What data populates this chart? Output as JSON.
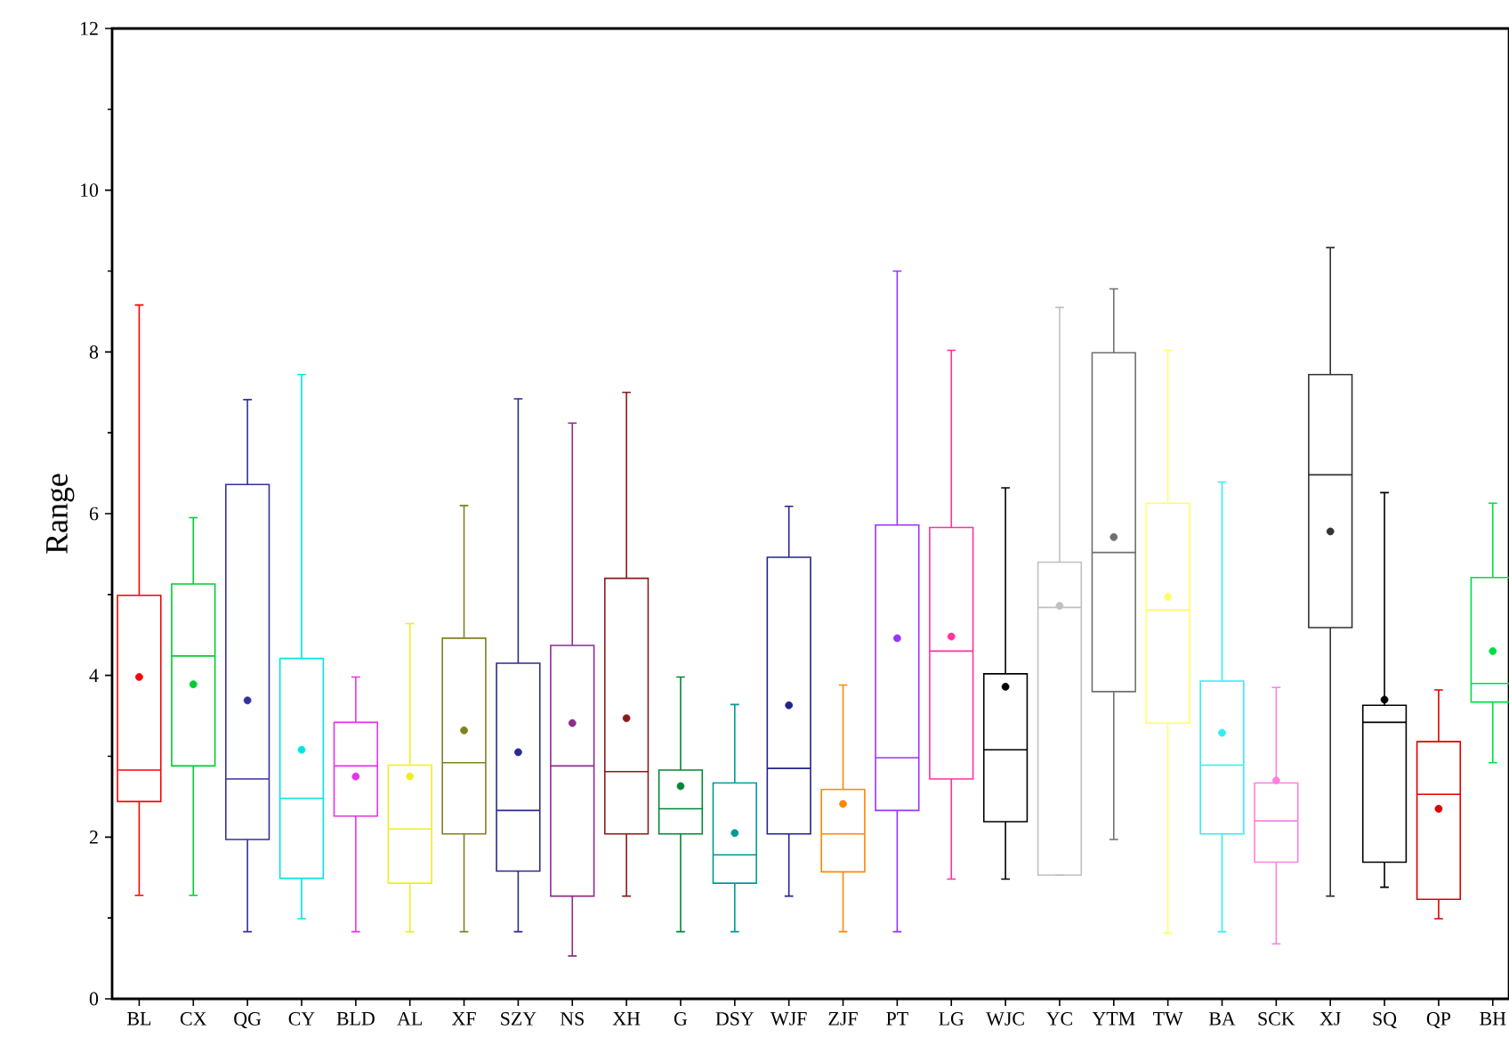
{
  "chart_data": {
    "type": "box",
    "ylabel": "Range",
    "ylim": [
      0,
      12
    ],
    "yticks": [
      0,
      2,
      4,
      6,
      8,
      10,
      12
    ],
    "grid": false,
    "marker": "circle",
    "categories": [
      "BL",
      "CX",
      "QG",
      "CY",
      "BLD",
      "AL",
      "XF",
      "SZY",
      "NS",
      "XH",
      "G",
      "DSY",
      "WJF",
      "ZJF",
      "PT",
      "LG",
      "WJC",
      "YC",
      "YTM",
      "TW",
      "BA",
      "SCK",
      "XJ",
      "SQ",
      "QP",
      "BH"
    ],
    "colors": [
      "#ff0000",
      "#00cc33",
      "#333399",
      "#00e5e5",
      "#e633e6",
      "#eeee22",
      "#808020",
      "#2b2b8c",
      "#8b2e8b",
      "#8b1a1a",
      "#008833",
      "#009999",
      "#23238e",
      "#ff8800",
      "#9933ff",
      "#ff3399",
      "#000000",
      "#c0c0c0",
      "#707070",
      "#ffff66",
      "#33eeee",
      "#ff80e0",
      "#333333",
      "#000000",
      "#dd0000",
      "#00dd44"
    ],
    "boxes": [
      {
        "low": 1.28,
        "q1": 2.44,
        "median": 2.83,
        "q3": 4.99,
        "high": 8.58,
        "mean": 3.98
      },
      {
        "low": 1.28,
        "q1": 2.88,
        "median": 4.24,
        "q3": 5.13,
        "high": 5.95,
        "mean": 3.89
      },
      {
        "low": 0.83,
        "q1": 1.97,
        "median": 2.72,
        "q3": 6.36,
        "high": 7.41,
        "mean": 3.69
      },
      {
        "low": 0.99,
        "q1": 1.49,
        "median": 2.48,
        "q3": 4.21,
        "high": 7.72,
        "mean": 3.08
      },
      {
        "low": 0.83,
        "q1": 2.26,
        "median": 2.88,
        "q3": 3.42,
        "high": 3.98,
        "mean": 2.75
      },
      {
        "low": 0.83,
        "q1": 1.43,
        "median": 2.1,
        "q3": 2.89,
        "high": 4.64,
        "mean": 2.75
      },
      {
        "low": 0.83,
        "q1": 2.04,
        "median": 2.92,
        "q3": 4.46,
        "high": 6.1,
        "mean": 3.32
      },
      {
        "low": 0.83,
        "q1": 1.58,
        "median": 2.33,
        "q3": 4.15,
        "high": 7.42,
        "mean": 3.05
      },
      {
        "low": 0.53,
        "q1": 1.27,
        "median": 2.88,
        "q3": 4.37,
        "high": 7.12,
        "mean": 3.41
      },
      {
        "low": 1.27,
        "q1": 2.04,
        "median": 2.81,
        "q3": 5.2,
        "high": 7.5,
        "mean": 3.47
      },
      {
        "low": 0.83,
        "q1": 2.04,
        "median": 2.35,
        "q3": 2.83,
        "high": 3.98,
        "mean": 2.63
      },
      {
        "low": 0.83,
        "q1": 1.43,
        "median": 1.78,
        "q3": 2.67,
        "high": 3.64,
        "mean": 2.05
      },
      {
        "low": 1.27,
        "q1": 2.04,
        "median": 2.85,
        "q3": 5.46,
        "high": 6.09,
        "mean": 3.63
      },
      {
        "low": 0.83,
        "q1": 1.57,
        "median": 2.04,
        "q3": 2.59,
        "high": 3.88,
        "mean": 2.41
      },
      {
        "low": 0.83,
        "q1": 2.33,
        "median": 2.98,
        "q3": 5.86,
        "high": 9.0,
        "mean": 4.46
      },
      {
        "low": 1.48,
        "q1": 2.72,
        "median": 4.3,
        "q3": 5.83,
        "high": 8.02,
        "mean": 4.48
      },
      {
        "low": 1.48,
        "q1": 2.19,
        "median": 3.08,
        "q3": 4.02,
        "high": 6.32,
        "mean": 3.86
      },
      {
        "low": 1.53,
        "q1": 1.53,
        "median": 4.84,
        "q3": 5.4,
        "high": 8.55,
        "mean": 4.86
      },
      {
        "low": 1.97,
        "q1": 3.8,
        "median": 5.52,
        "q3": 7.99,
        "high": 8.78,
        "mean": 5.71
      },
      {
        "low": 0.81,
        "q1": 3.41,
        "median": 4.81,
        "q3": 6.13,
        "high": 8.02,
        "mean": 4.97
      },
      {
        "low": 0.83,
        "q1": 2.04,
        "median": 2.89,
        "q3": 3.93,
        "high": 6.39,
        "mean": 3.29
      },
      {
        "low": 0.68,
        "q1": 1.69,
        "median": 2.2,
        "q3": 2.67,
        "high": 3.85,
        "mean": 2.7
      },
      {
        "low": 1.27,
        "q1": 4.59,
        "median": 6.48,
        "q3": 7.72,
        "high": 9.29,
        "mean": 5.78
      },
      {
        "low": 1.38,
        "q1": 1.69,
        "median": 3.42,
        "q3": 3.63,
        "high": 6.26,
        "mean": 3.7
      },
      {
        "low": 0.99,
        "q1": 1.23,
        "median": 2.53,
        "q3": 3.18,
        "high": 3.82,
        "mean": 2.35
      },
      {
        "low": 2.92,
        "q1": 3.67,
        "median": 3.9,
        "q3": 5.21,
        "high": 6.13,
        "mean": 4.3
      }
    ]
  }
}
